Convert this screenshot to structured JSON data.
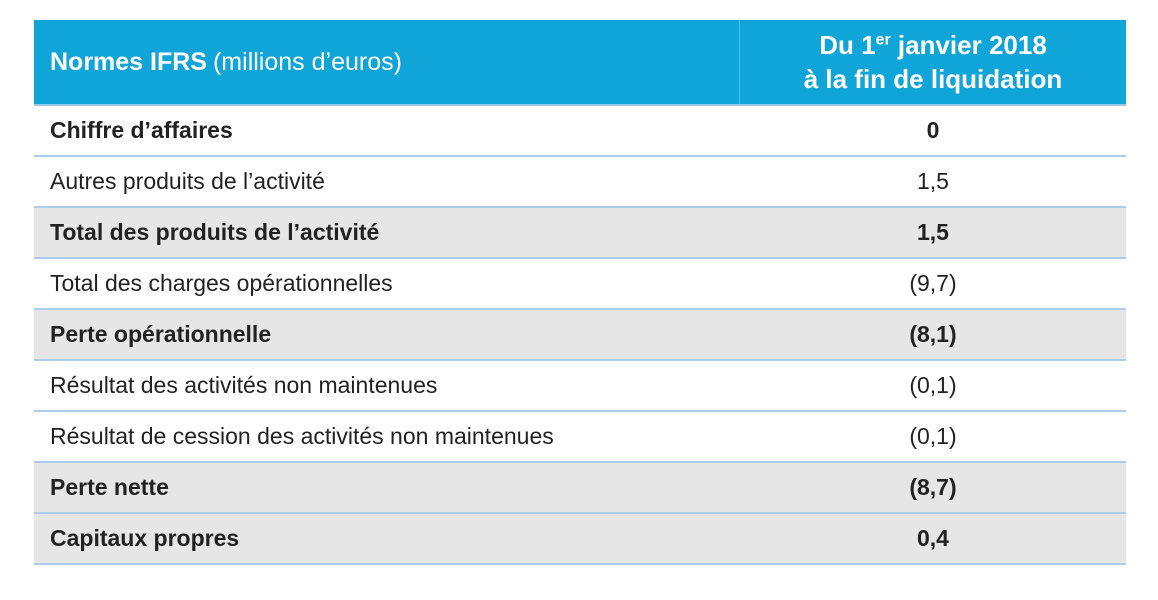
{
  "header": {
    "title": "Normes IFRS",
    "unit": "(millions d’euros)",
    "column": {
      "line1_pre": "Du 1",
      "line1_sup": "er",
      "line1_post": " janvier 2018",
      "line2": "à la fin de liquidation"
    }
  },
  "table": {
    "rows": [
      {
        "label": "Chiffre d’affaires",
        "value": "0",
        "bold": true,
        "shaded": false
      },
      {
        "label": "Autres produits de l’activité",
        "value": "1,5",
        "bold": false,
        "shaded": false
      },
      {
        "label": "Total des produits de l’activité",
        "value": "1,5",
        "bold": true,
        "shaded": true
      },
      {
        "label": "Total des charges opérationnelles",
        "value": "(9,7)",
        "bold": false,
        "shaded": false
      },
      {
        "label": "Perte opérationnelle",
        "value": "(8,1)",
        "bold": true,
        "shaded": true
      },
      {
        "label": "Résultat des activités non maintenues",
        "value": "(0,1)",
        "bold": false,
        "shaded": false
      },
      {
        "label": "Résultat de cession des activités non maintenues",
        "value": "(0,1)",
        "bold": false,
        "shaded": false
      },
      {
        "label": "Perte nette",
        "value": "(8,7)",
        "bold": true,
        "shaded": true
      },
      {
        "label": "Capitaux propres",
        "value": "0,4",
        "bold": true,
        "shaded": true
      }
    ]
  }
}
